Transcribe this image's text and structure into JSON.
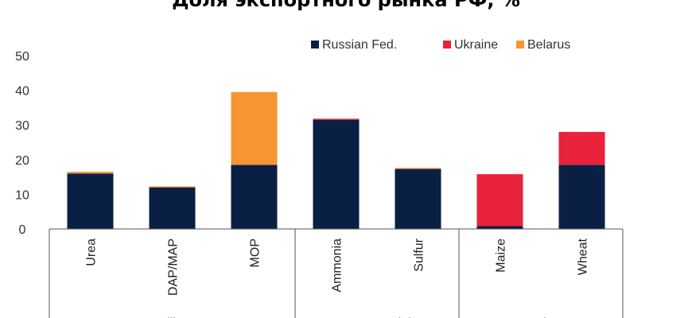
{
  "chart_data": {
    "type": "bar",
    "stacked": true,
    "title": "Доля экспортного рынка РФ, %",
    "categories": [
      "Urea",
      "DAP/MAP",
      "MOP",
      "Ammonia",
      "Sulfur",
      "Maize",
      "Wheat"
    ],
    "groups": [
      {
        "label": "Fertilizers",
        "categories": [
          "Urea",
          "DAP/MAP",
          "MOP"
        ]
      },
      {
        "label": "Raw materials",
        "categories": [
          "Ammonia",
          "Sulfur"
        ]
      },
      {
        "label": "Grains",
        "categories": [
          "Maize",
          "Wheat"
        ]
      }
    ],
    "series": [
      {
        "name": "Russian Fed.",
        "color": "#0a1f44",
        "values": [
          16,
          12,
          18.5,
          31.5,
          17.3,
          0.8,
          18.5
        ]
      },
      {
        "name": "Ukraine",
        "color": "#e8233a",
        "values": [
          0,
          0,
          0,
          0.3,
          0,
          15,
          9.5
        ]
      },
      {
        "name": "Belarus",
        "color": "#f79433",
        "values": [
          0.5,
          0.3,
          21,
          0,
          0.3,
          0,
          0
        ]
      }
    ],
    "yticks": [
      0,
      10,
      20,
      30,
      40,
      50
    ],
    "ylim": [
      0,
      50
    ],
    "legend": "top-right",
    "grid": false
  }
}
